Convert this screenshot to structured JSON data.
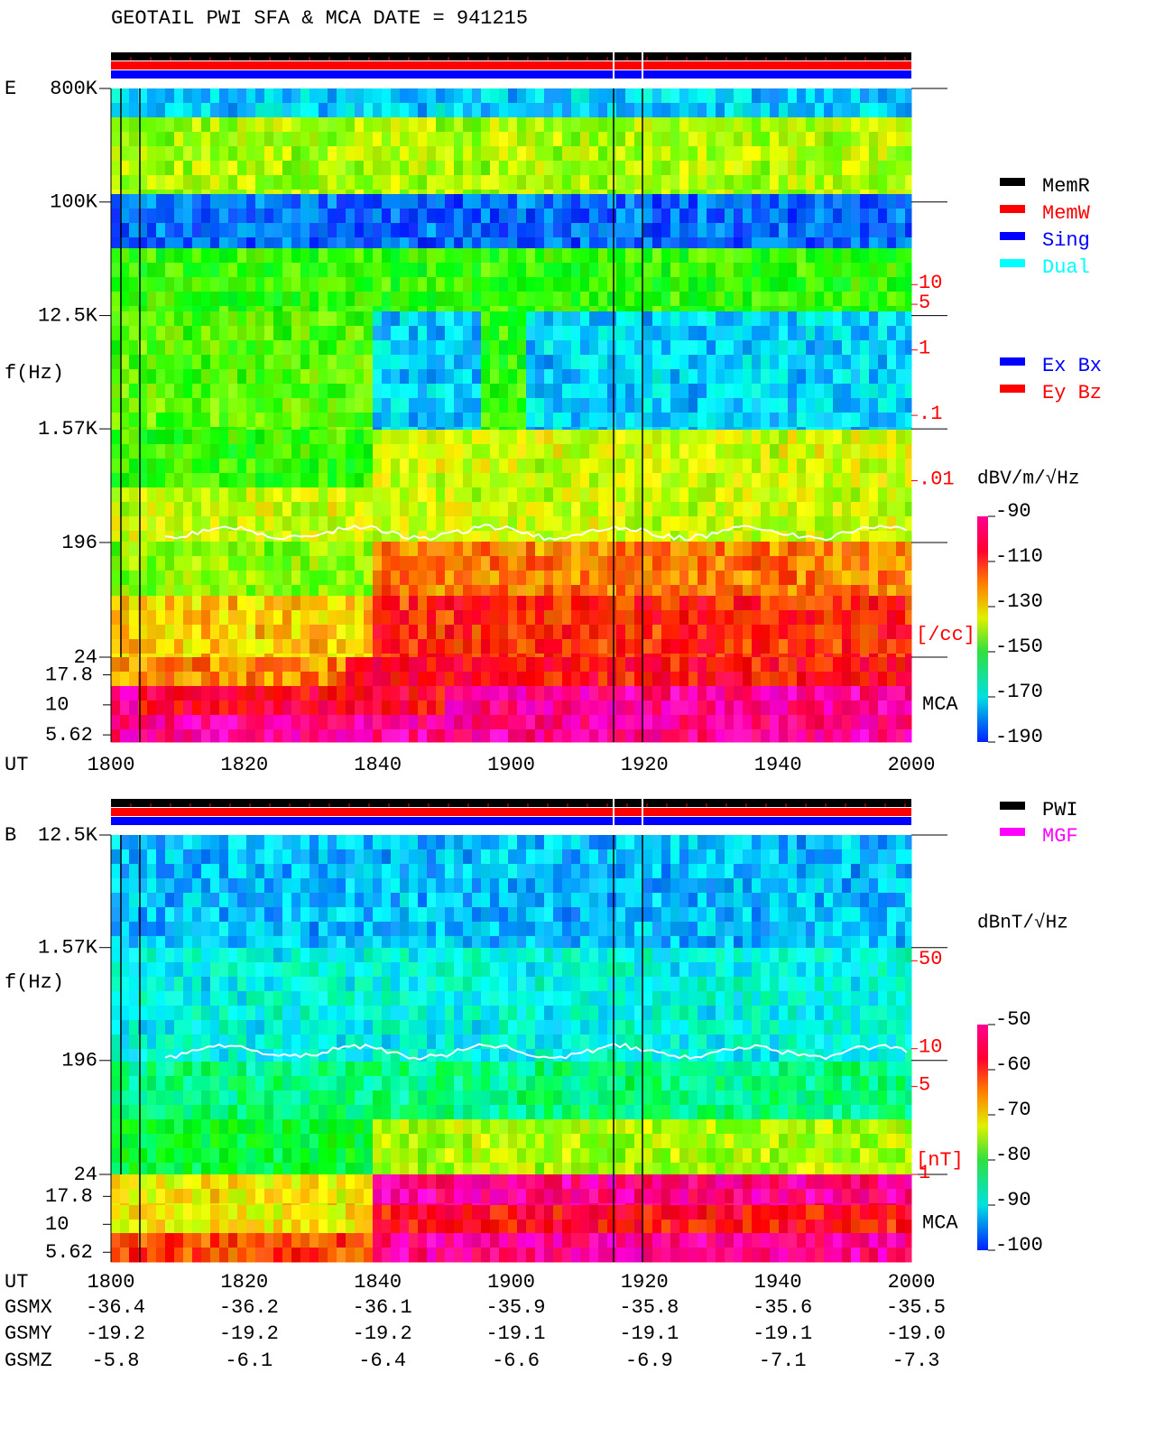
{
  "title": "GEOTAIL  PWI SFA & MCA   DATE = 941215",
  "chart_data": [
    {
      "type": "spectrogram",
      "panel_label": "E",
      "ylabel": "f(Hz)",
      "xlabel": "UT",
      "log_y": true,
      "ylim": [
        24,
        800000
      ],
      "yticks": [
        {
          "value": 800000,
          "label": "800K"
        },
        {
          "value": 100000,
          "label": "100K"
        },
        {
          "value": 12500,
          "label": "12.5K"
        },
        {
          "value": 1570,
          "label": "1.57K"
        },
        196,
        24
      ],
      "mca_label": "MCA",
      "mca_lim": [
        4.9,
        25
      ],
      "mca_ticks": [
        17.8,
        10,
        5.62
      ],
      "xlim": [
        1800,
        2000
      ],
      "xticks": [
        1800,
        1820,
        1840,
        1900,
        1920,
        1940,
        2000
      ],
      "y2lim": [
        2e-05,
        10000
      ],
      "y2ticks": [
        10,
        5,
        1,
        {
          "value": 0.1,
          "label": ".1"
        },
        {
          "value": 0.01,
          "label": ".01"
        }
      ],
      "y2label": "[/cc]",
      "y2color": "#ff0000",
      "legend": [
        {
          "name": "MemR",
          "color": "#000000"
        },
        {
          "name": "MemW",
          "color": "#ff0000"
        },
        {
          "name": "Sing",
          "color": "#0000ff"
        },
        {
          "name": "Dual",
          "color": "#00ffff"
        }
      ],
      "legend2": [
        {
          "name": "Ex Bx",
          "color": "#0000ff"
        },
        {
          "name": "Ey Bz",
          "color": "#ff0000"
        }
      ],
      "colorbar": {
        "label": "dBV/m/√Hz",
        "lim": [
          -190,
          -90
        ],
        "ticks": [
          -90,
          -110,
          -130,
          -150,
          -170,
          -190
        ]
      }
    },
    {
      "type": "spectrogram",
      "panel_label": "B",
      "ylabel": "f(Hz)",
      "xlabel": "UT",
      "log_y": true,
      "ylim": [
        24,
        12500
      ],
      "yticks": [
        {
          "value": 12500,
          "label": "12.5K"
        },
        {
          "value": 1570,
          "label": "1.57K"
        },
        196,
        24
      ],
      "mca_label": "MCA",
      "mca_lim": [
        4.6,
        28
      ],
      "mca_ticks": [
        17.8,
        10,
        5.62
      ],
      "xlim": [
        1800,
        2000
      ],
      "xticks": [
        1800,
        1820,
        1840,
        1900,
        1920,
        1940,
        2000
      ],
      "y2lim": [
        1,
        500
      ],
      "y2ticks": [
        50,
        10,
        5,
        1
      ],
      "y2label": "[nT]",
      "y2color": "#ff0000",
      "legend": [
        {
          "name": "PWI",
          "color": "#000000"
        },
        {
          "name": "MGF",
          "color": "#ff00ff"
        }
      ],
      "colorbar": {
        "label": "dBnT/√Hz",
        "lim": [
          -100,
          -50
        ],
        "ticks": [
          -50,
          -60,
          -70,
          -80,
          -90,
          -100
        ]
      }
    }
  ],
  "orbit": {
    "rows": [
      {
        "name": "GSMX",
        "values": [
          -36.4,
          -36.2,
          -36.1,
          -35.9,
          -35.8,
          -35.6,
          -35.5
        ]
      },
      {
        "name": "GSMY",
        "values": [
          -19.2,
          -19.2,
          -19.2,
          -19.1,
          -19.1,
          -19.1,
          {
            "value": -19.0,
            "label": "-19.0"
          }
        ]
      },
      {
        "name": "GSMZ",
        "values": [
          -5.8,
          -6.1,
          -6.4,
          -6.6,
          -6.9,
          -7.1,
          -7.3
        ]
      }
    ]
  }
}
